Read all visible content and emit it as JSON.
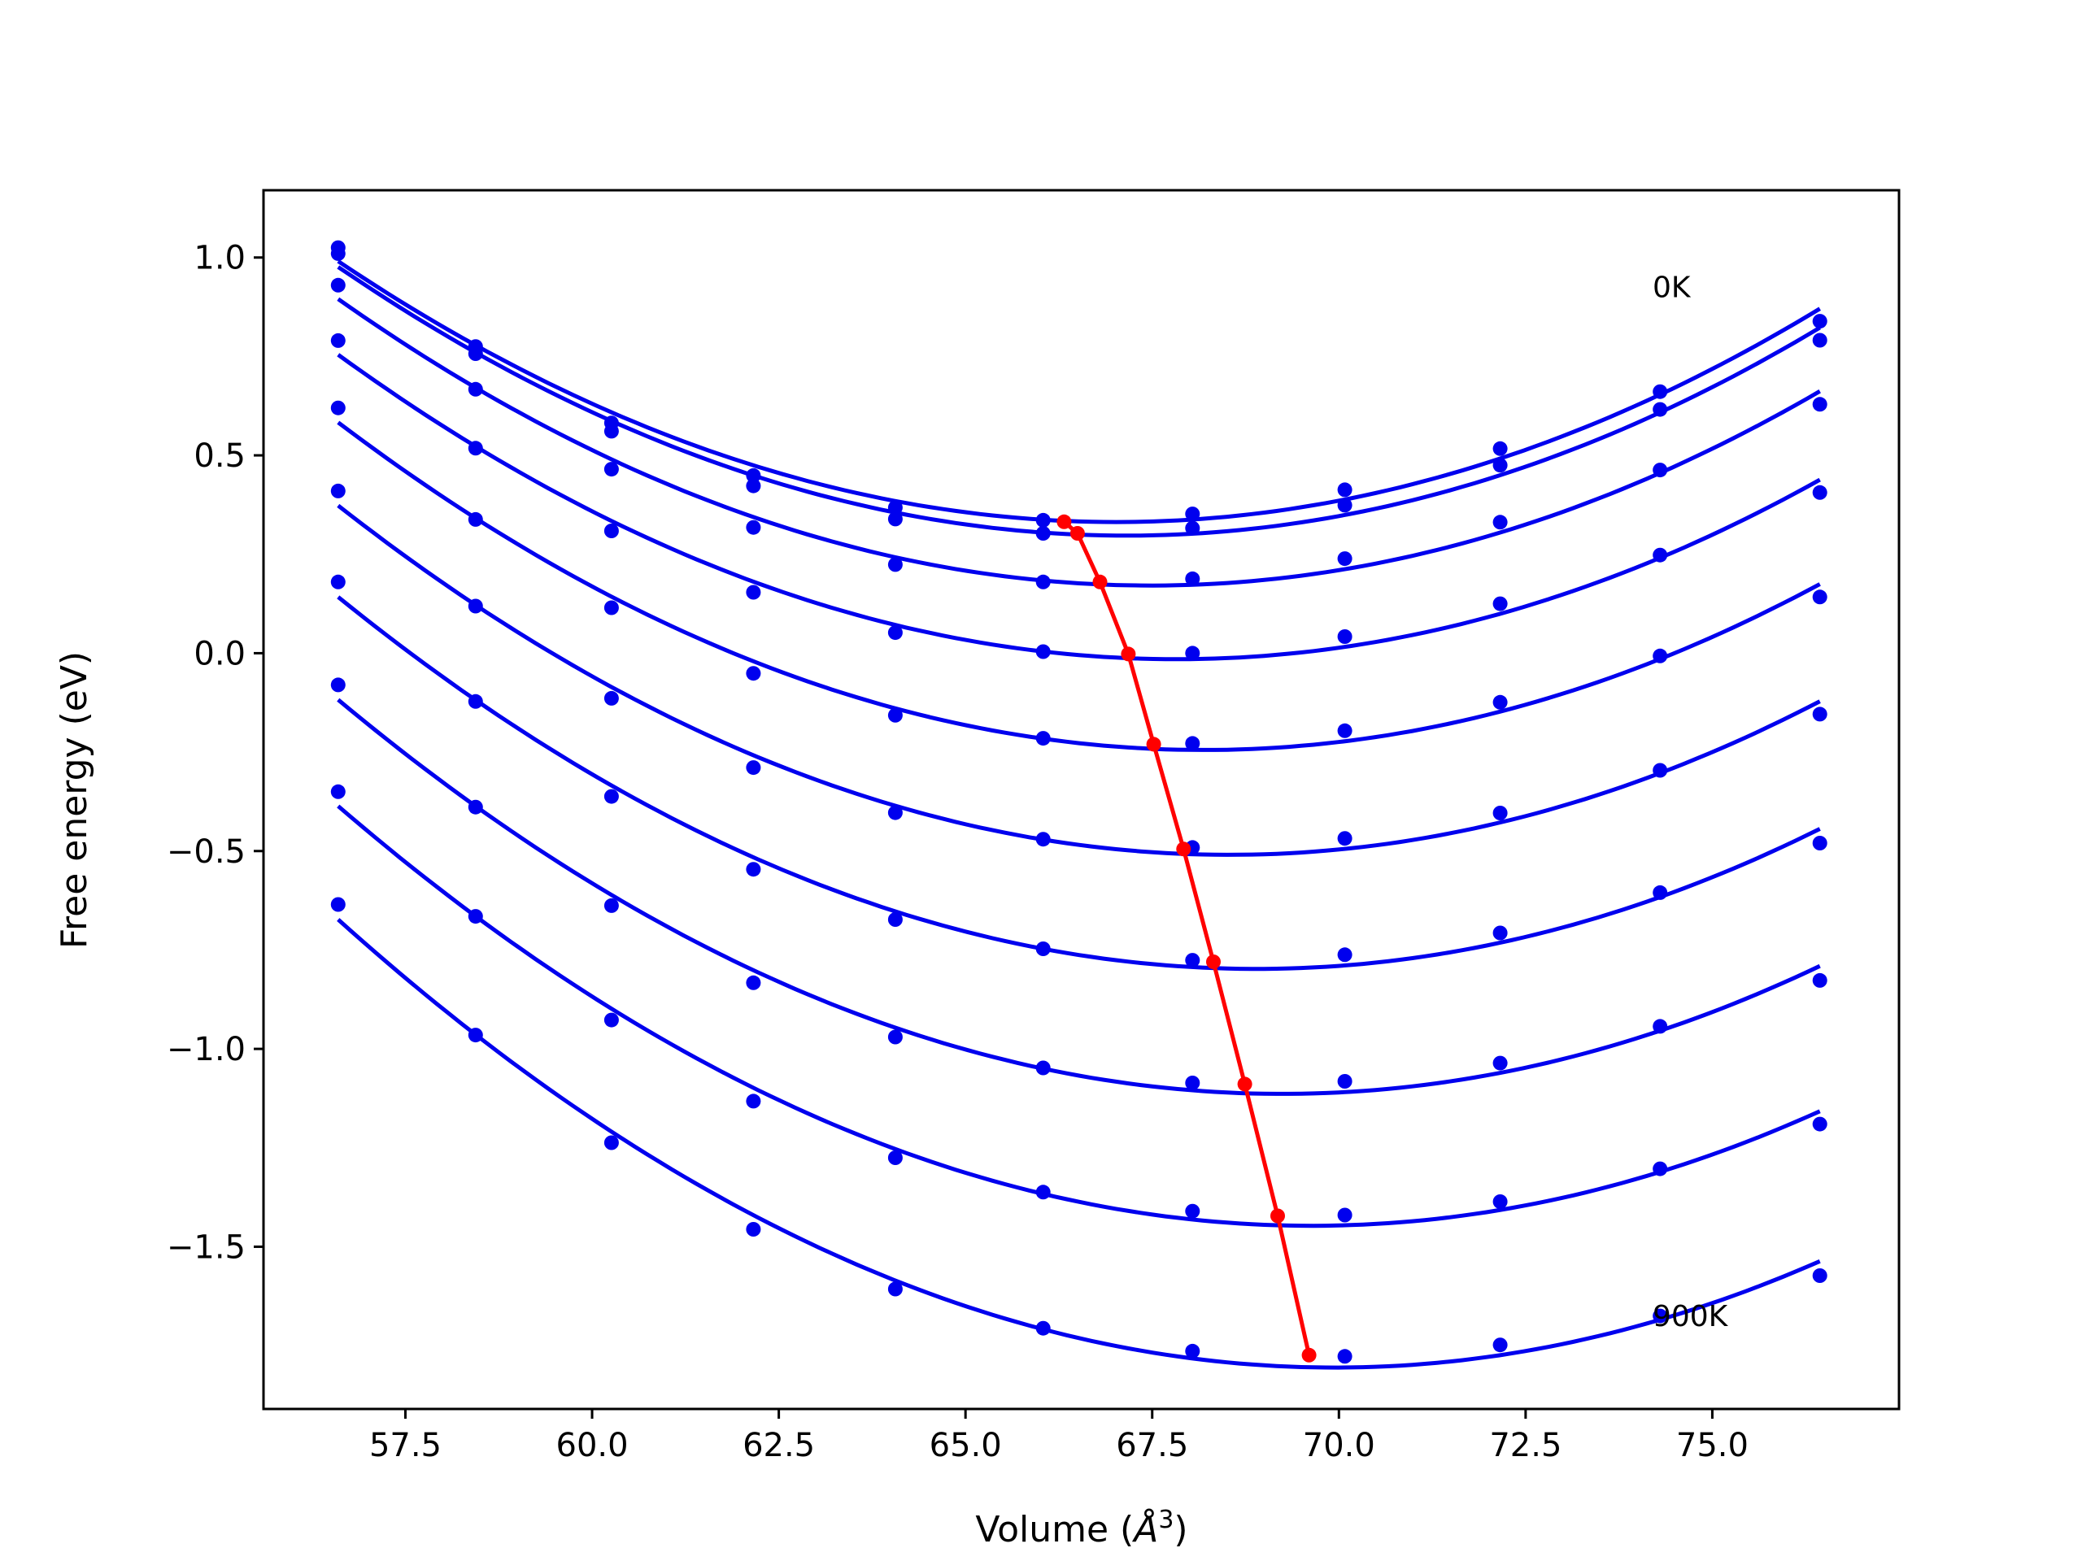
{
  "chart_data": {
    "type": "line",
    "title": "",
    "xlabel": "Volume ($\\AA^3$)",
    "xlabel_text": "Volume (",
    "xlabel_unit": "Å",
    "xlabel_sup": "3",
    "xlabel_close": ")",
    "ylabel": "Free energy (eV)",
    "xlim": [
      55.6,
      77.5
    ],
    "ylim": [
      -1.91,
      1.17
    ],
    "xticks": [
      57.5,
      60.0,
      62.5,
      65.0,
      67.5,
      70.0,
      72.5,
      75.0
    ],
    "xtick_labels": [
      "57.5",
      "60.0",
      "62.5",
      "65.0",
      "67.5",
      "70.0",
      "72.5",
      "75.0"
    ],
    "yticks": [
      1.0,
      0.5,
      0.0,
      -0.5,
      -1.0,
      -1.5
    ],
    "ytick_labels": [
      "1.0",
      "0.5",
      "0.0",
      "−0.5",
      "−1.0",
      "−1.5"
    ],
    "grid": false,
    "legend": "none",
    "colors": {
      "curves": "#0000ee",
      "minima": "#ff0000"
    },
    "x": [
      56.6,
      58.44,
      60.26,
      62.16,
      64.06,
      66.04,
      68.04,
      70.08,
      72.16,
      74.3,
      76.44
    ],
    "series": [
      {
        "values": [
          1.025,
          0.775,
          0.582,
          0.449,
          0.368,
          0.336,
          0.352,
          0.413,
          0.517,
          0.661,
          0.839
        ]
      },
      {
        "values": [
          1.01,
          0.757,
          0.561,
          0.423,
          0.339,
          0.303,
          0.316,
          0.374,
          0.475,
          0.616,
          0.791
        ]
      },
      {
        "values": [
          0.93,
          0.667,
          0.465,
          0.318,
          0.224,
          0.18,
          0.188,
          0.239,
          0.331,
          0.463,
          0.629
        ]
      },
      {
        "values": [
          0.79,
          0.518,
          0.309,
          0.154,
          0.052,
          0.004,
          0.0,
          0.042,
          0.125,
          0.248,
          0.406
        ]
      },
      {
        "values": [
          0.62,
          0.338,
          0.115,
          -0.051,
          -0.157,
          -0.215,
          -0.228,
          -0.196,
          -0.124,
          -0.007,
          0.142
        ]
      },
      {
        "values": [
          0.41,
          0.119,
          -0.114,
          -0.289,
          -0.403,
          -0.47,
          -0.491,
          -0.468,
          -0.404,
          -0.296,
          -0.154
        ]
      },
      {
        "values": [
          0.18,
          -0.122,
          -0.362,
          -0.546,
          -0.673,
          -0.747,
          -0.776,
          -0.762,
          -0.707,
          -0.605,
          -0.48
        ]
      },
      {
        "values": [
          -0.08,
          -0.389,
          -0.638,
          -0.833,
          -0.97,
          -1.048,
          -1.086,
          -1.082,
          -1.036,
          -0.943,
          -0.827
        ]
      },
      {
        "values": [
          -0.35,
          -0.665,
          -0.927,
          -1.132,
          -1.275,
          -1.362,
          -1.41,
          -1.42,
          -1.386,
          -1.303,
          -1.19
        ]
      },
      {
        "values": [
          -0.635,
          -0.965,
          -1.237,
          -1.456,
          -1.607,
          -1.706,
          -1.764,
          -1.777,
          -1.748,
          -1.675,
          -1.573
        ]
      }
    ],
    "minima_curve": {
      "x": [
        66.32,
        66.5,
        66.8,
        67.18,
        67.52,
        67.92,
        68.32,
        68.74,
        69.18,
        69.6
      ],
      "y": [
        0.332,
        0.303,
        0.18,
        -0.002,
        -0.23,
        -0.495,
        -0.78,
        -1.089,
        -1.422,
        -1.774
      ]
    },
    "annotations": [
      {
        "text": "0K",
        "x": 74.2,
        "y": 0.9
      },
      {
        "text": "900K",
        "x": 74.2,
        "y": -1.7
      }
    ]
  }
}
